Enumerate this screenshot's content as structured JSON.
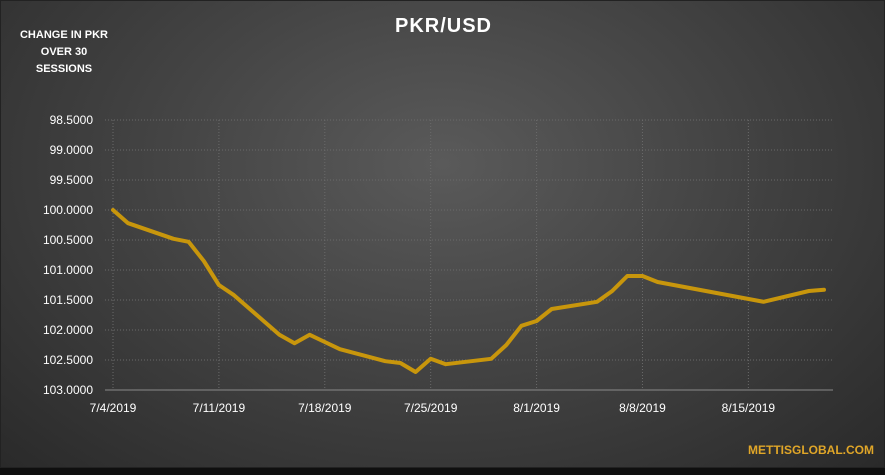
{
  "chart_data": {
    "type": "line",
    "title": "PKR/USD",
    "ylabel": "CHANGE IN PKR OVER 30 SESSIONS",
    "xlabel": "",
    "y_reversed": true,
    "ylim": [
      98.5,
      103.0
    ],
    "yticks": [
      "98.5000",
      "99.0000",
      "99.5000",
      "100.0000",
      "100.5000",
      "101.0000",
      "101.5000",
      "102.0000",
      "102.5000",
      "103.0000"
    ],
    "xticks": [
      "7/4/2019",
      "7/11/2019",
      "7/18/2019",
      "7/25/2019",
      "8/1/2019",
      "8/8/2019",
      "8/15/2019"
    ],
    "grid": true,
    "line_color": "#c8960c",
    "series": [
      {
        "name": "",
        "points": [
          [
            "7/4/2019",
            100.0
          ],
          [
            "7/5/2019",
            100.22
          ],
          [
            "7/8/2019",
            100.48
          ],
          [
            "7/9/2019",
            100.53
          ],
          [
            "7/10/2019",
            100.85
          ],
          [
            "7/11/2019",
            101.25
          ],
          [
            "7/12/2019",
            101.42
          ],
          [
            "7/15/2019",
            102.08
          ],
          [
            "7/16/2019",
            102.22
          ],
          [
            "7/17/2019",
            102.08
          ],
          [
            "7/18/2019",
            102.2
          ],
          [
            "7/19/2019",
            102.32
          ],
          [
            "7/22/2019",
            102.52
          ],
          [
            "7/23/2019",
            102.55
          ],
          [
            "7/24/2019",
            102.7
          ],
          [
            "7/25/2019",
            102.48
          ],
          [
            "7/26/2019",
            102.57
          ],
          [
            "7/29/2019",
            102.48
          ],
          [
            "7/30/2019",
            102.25
          ],
          [
            "7/31/2019",
            101.93
          ],
          [
            "8/1/2019",
            101.85
          ],
          [
            "8/2/2019",
            101.65
          ],
          [
            "8/5/2019",
            101.53
          ],
          [
            "8/6/2019",
            101.35
          ],
          [
            "8/7/2019",
            101.1
          ],
          [
            "8/8/2019",
            101.1
          ],
          [
            "8/9/2019",
            101.2
          ],
          [
            "8/16/2019",
            101.53
          ],
          [
            "8/19/2019",
            101.35
          ],
          [
            "8/20/2019",
            101.33
          ]
        ]
      }
    ]
  },
  "watermark": "METTISGLOBAL.COM"
}
